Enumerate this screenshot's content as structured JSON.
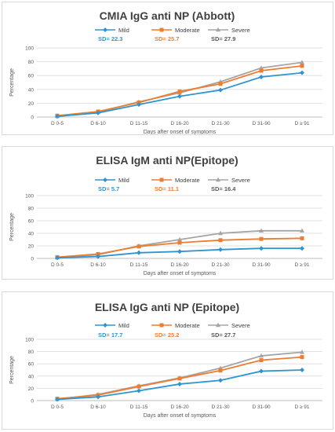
{
  "colors": {
    "mild": "#2e95cf",
    "moderate": "#ed7d31",
    "severe": "#a5a5a5"
  },
  "chart_data": [
    {
      "type": "line",
      "title": "CMIA IgG anti NP (Abbott)",
      "xlabel": "Days after onset of symptoms",
      "ylabel": "Percentage",
      "ylim": [
        0,
        100
      ],
      "yticks": [
        "0",
        "20",
        "40",
        "60",
        "80",
        "100"
      ],
      "categories": [
        "D 0-5",
        "D 6-10",
        "D 11-15",
        "D 16-20",
        "D 21-30",
        "D 31-90",
        "D ≥ 91"
      ],
      "series": [
        {
          "name": "Mild",
          "sd": "SD= 22.3",
          "values": [
            1,
            6,
            18,
            30,
            39,
            58,
            64
          ]
        },
        {
          "name": "Moderate",
          "sd": "SD= 25.7",
          "values": [
            2,
            8,
            21,
            37,
            48,
            67,
            74
          ]
        },
        {
          "name": "Severe",
          "sd": "SD= 27.9",
          "values": [
            1,
            7,
            22,
            35,
            51,
            71,
            79
          ]
        }
      ],
      "grid": true,
      "legend": "top"
    },
    {
      "type": "line",
      "title": "ELISA IgM anti NP(Epitope)",
      "xlabel": "Days after onset of symptoms",
      "ylabel": "Percentage",
      "ylim": [
        0,
        100
      ],
      "yticks": [
        "0",
        "20",
        "40",
        "60",
        "80",
        "100"
      ],
      "categories": [
        "D 0-5",
        "D 6-10",
        "D 11-15",
        "D 16-20",
        "D 21-30",
        "D 31-90",
        "D ≥ 91"
      ],
      "series": [
        {
          "name": "Mild",
          "sd": "SD= 5.7",
          "values": [
            1,
            3,
            9,
            11,
            14,
            16,
            16
          ]
        },
        {
          "name": "Moderate",
          "sd": "SD= 11.1",
          "values": [
            2,
            7,
            19,
            25,
            29,
            31,
            32
          ]
        },
        {
          "name": "Severe",
          "sd": "SD= 16.4",
          "values": [
            1,
            6,
            20,
            30,
            40,
            44,
            44
          ]
        }
      ],
      "grid": true,
      "legend": "top"
    },
    {
      "type": "line",
      "title": "ELISA IgG anti NP (Epitope)",
      "xlabel": "Days after onset of symptoms",
      "ylabel": "Percentage",
      "ylim": [
        0,
        100
      ],
      "yticks": [
        "0",
        "20",
        "40",
        "60",
        "80",
        "100"
      ],
      "categories": [
        "D 0-5",
        "D 6-10",
        "D 11-15",
        "D 16-20",
        "D 21-30",
        "D 31-90",
        "D ≥ 91"
      ],
      "series": [
        {
          "name": "Mild",
          "sd": "SD= 17.7",
          "values": [
            2,
            6,
            16,
            27,
            33,
            48,
            50
          ]
        },
        {
          "name": "Moderate",
          "sd": "SD= 25.2",
          "values": [
            3,
            9,
            23,
            36,
            49,
            66,
            71
          ]
        },
        {
          "name": "Severe",
          "sd": "SD= 27.7",
          "values": [
            2,
            10,
            24,
            37,
            53,
            73,
            79
          ]
        }
      ],
      "grid": true,
      "legend": "top"
    }
  ]
}
